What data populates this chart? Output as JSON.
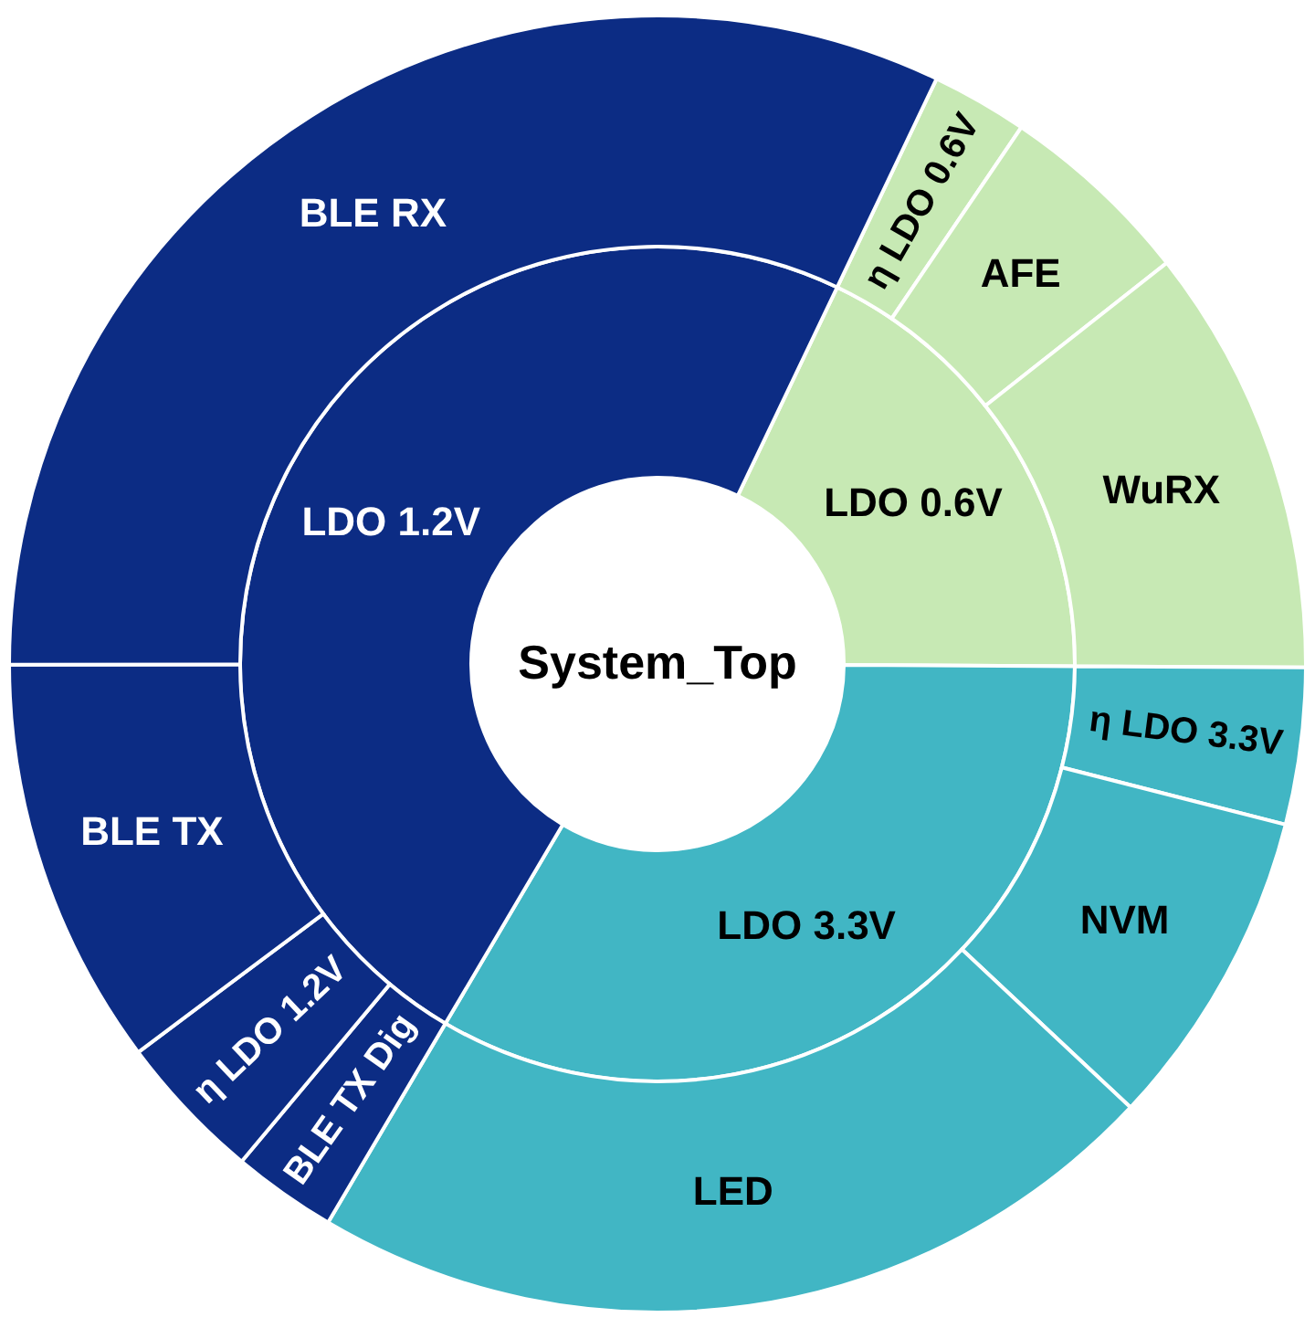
{
  "chart_data": [
    {
      "type": "donut",
      "title": "System_Top",
      "categories": [
        "LDO 0.6V",
        "LDO 3.3V",
        "LDO 1.2V"
      ],
      "values": [
        18.0,
        33.4,
        48.6
      ],
      "colors": [
        "#c7e9b4",
        "#41b6c4",
        "#0c2c84"
      ]
    },
    {
      "type": "donut",
      "categories": [
        "η LDO 0.6V",
        "AFE",
        "WuRX",
        "η LDO 3.3V",
        "NVM",
        "LED",
        "BLE TX Dig",
        "η LDO 1.2V",
        "BLE TX",
        "BLE RX"
      ],
      "values": [
        2.4,
        4.9,
        10.7,
        3.9,
        8.0,
        21.5,
        2.6,
        3.7,
        10.2,
        32.1
      ],
      "colors": [
        "#c7e9b4",
        "#c7e9b4",
        "#c7e9b4",
        "#41b6c4",
        "#41b6c4",
        "#41b6c4",
        "#0c2c84",
        "#0c2c84",
        "#0c2c84",
        "#0c2c84"
      ]
    }
  ]
}
